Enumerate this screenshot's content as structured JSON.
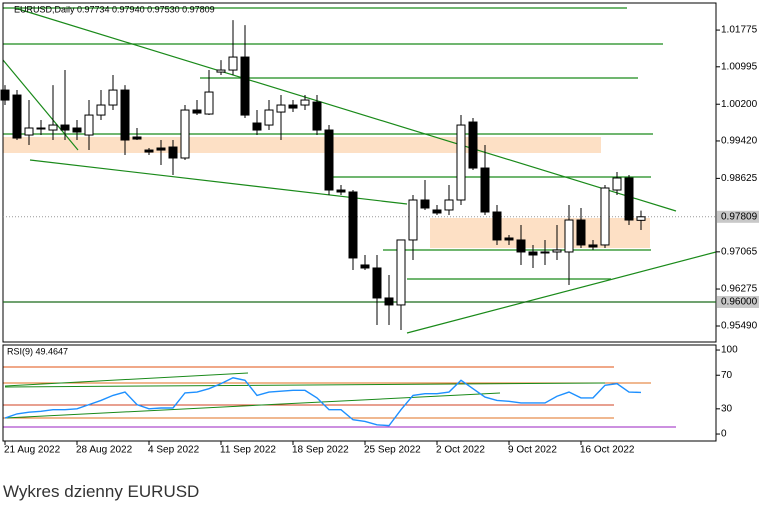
{
  "chart_data": [
    {
      "type": "candlestick",
      "title": "EURUSD,Daily  0.97734 0.97940 0.97530 0.97809",
      "categories": [
        "21 Aug 2022",
        null,
        null,
        null,
        null,
        null,
        "28 Aug 2022",
        null,
        null,
        null,
        null,
        null,
        "4 Sep 2022",
        null,
        null,
        null,
        null,
        null,
        "11 Sep 2022",
        null,
        null,
        null,
        null,
        null,
        "18 Sep 2022",
        null,
        null,
        null,
        null,
        null,
        "25 Sep 2022",
        null,
        null,
        null,
        null,
        null,
        "2 Oct 2022",
        null,
        null,
        null,
        null,
        null,
        "9 Oct 2022",
        null,
        null,
        null,
        null,
        null,
        "16 Oct 2022",
        null,
        null,
        null,
        null,
        null
      ],
      "open": [
        1.00501,
        1.00395,
        0.99546,
        0.99695,
        0.99652,
        0.99758,
        0.99695,
        0.99546,
        0.9997,
        1.00183,
        1.00501,
        0.99504,
        0.99227,
        0.9927,
        0.99291,
        0.99058,
        1.00077,
        0.99992,
        1.00883,
        1.00926,
        1.01202,
        0.99801,
        0.99758,
        1.00034,
        1.00183,
        1.00183,
        1.00246,
        0.99652,
        0.98378,
        0.98336,
        0.96786,
        0.96722,
        0.96085,
        0.95937,
        0.97317,
        0.98166,
        0.97954,
        0.97954,
        0.98166,
        0.99822,
        0.98845,
        0.97911,
        0.97359,
        0.97317,
        0.97062,
        0.97062,
        0.97062,
        0.97062,
        0.97741,
        0.97211,
        0.97211,
        0.98378,
        0.98633,
        0.97734
      ],
      "high": [
        1.00607,
        1.00501,
        1.00289,
        0.99864,
        1.00607,
        1.00926,
        0.99864,
        1.00289,
        1.00501,
        1.0082,
        1.00607,
        0.99695,
        0.9927,
        0.9944,
        0.9944,
        1.00183,
        1.00289,
        1.00926,
        1.01138,
        1.01987,
        1.01881,
        1.00077,
        1.00289,
        1.00395,
        1.00289,
        1.00395,
        1.00395,
        0.99758,
        0.98484,
        0.98378,
        0.96998,
        0.96998,
        0.96574,
        0.97317,
        0.98272,
        0.98591,
        0.9806,
        0.98484,
        0.9997,
        0.99907,
        0.99334,
        0.9806,
        0.97423,
        0.97635,
        0.97211,
        0.97317,
        0.97635,
        0.9806,
        0.97996,
        0.97317,
        0.98484,
        0.9876,
        0.98697,
        0.9794
      ],
      "low": [
        1.00183,
        0.9944,
        0.99334,
        0.99546,
        0.9944,
        0.9944,
        0.9944,
        0.99227,
        0.99864,
        1.00077,
        0.99121,
        0.9944,
        0.99121,
        0.98909,
        0.98697,
        0.99015,
        0.9997,
        0.9997,
        1.0082,
        1.0082,
        0.99907,
        0.99546,
        0.99652,
        0.9944,
        1.00034,
        1.00077,
        0.99546,
        0.98272,
        0.98272,
        0.9668,
        0.9668,
        0.95512,
        0.95512,
        0.95406,
        0.96892,
        0.97954,
        0.97848,
        0.97848,
        0.9806,
        0.98803,
        0.97848,
        0.97211,
        0.97211,
        0.96786,
        0.96722,
        0.96786,
        0.96892,
        0.96361,
        0.97147,
        0.97104,
        0.97147,
        0.98272,
        0.97635,
        0.9753
      ],
      "close": [
        1.00289,
        0.99482,
        0.99695,
        0.9969,
        0.99758,
        0.99652,
        0.9961,
        0.9997,
        1.00183,
        1.00501,
        0.9944,
        0.99461,
        0.99185,
        0.99227,
        0.99058,
        1.00077,
        1.00013,
        1.00459,
        1.00926,
        1.01202,
        0.9997,
        0.99652,
        1.00077,
        1.00183,
        1.00119,
        1.00289,
        0.99652,
        0.98378,
        0.98336,
        0.96935,
        0.96722,
        0.96085,
        0.95937,
        0.97317,
        0.98166,
        0.97996,
        0.9789,
        0.98166,
        0.99758,
        0.98845,
        0.97911,
        0.97317,
        0.97317,
        0.97062,
        0.96998,
        0.9706,
        0.97104,
        0.97741,
        0.97211,
        0.97168,
        0.98421,
        0.98633,
        0.97741,
        0.97809
      ],
      "up_color": "#ffffff",
      "down_color": "#000000",
      "ylim": [
        0.9515,
        1.0235
      ],
      "yticks": [
        1.01775,
        1.00995,
        {
          "value": 1.002,
          "label": "1.00200"
        },
        {
          "value": 0.9942,
          "label": "0.99420"
        },
        0.98625,
        0.97065,
        0.96275,
        {
          "value": 0.9549,
          "label": "0.95490"
        }
      ],
      "current_price": 0.97809,
      "level": {
        "value": 0.96,
        "label": "0.96000"
      }
    },
    {
      "type": "line",
      "title": "RSI(9) 49.4647",
      "values": [
        19,
        24,
        26,
        27,
        29,
        29,
        30,
        35,
        40,
        46,
        50,
        35,
        30,
        31,
        31,
        49,
        50,
        54,
        60,
        67,
        64,
        46,
        50,
        51,
        52,
        52,
        43,
        29,
        29,
        17,
        15,
        11,
        10,
        29,
        46,
        48,
        48,
        50,
        64,
        54,
        44,
        40,
        39,
        37,
        37,
        37,
        45,
        50,
        43,
        43,
        58,
        60,
        50,
        49.4647
      ],
      "color": "#1e90ff",
      "ylim": [
        -8.3,
        106
      ],
      "yticks": [
        100,
        70,
        30,
        0
      ]
    }
  ],
  "caption": "Wykres dzienny EURUSD"
}
